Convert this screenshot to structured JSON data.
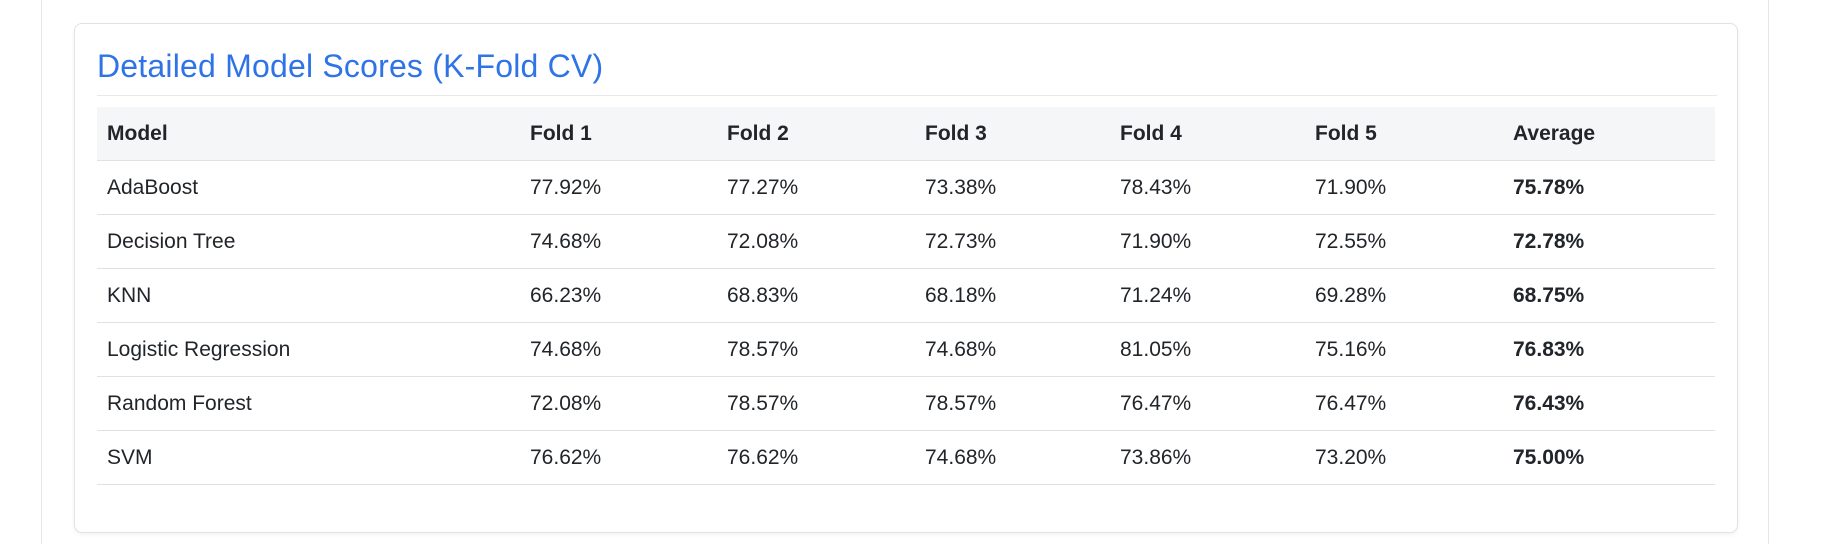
{
  "card": {
    "title": "Detailed Model Scores (K-Fold CV)"
  },
  "table": {
    "headers": [
      "Model",
      "Fold 1",
      "Fold 2",
      "Fold 3",
      "Fold 4",
      "Fold 5",
      "Average"
    ],
    "rows": [
      [
        "AdaBoost",
        "77.92%",
        "77.27%",
        "73.38%",
        "78.43%",
        "71.90%",
        "75.78%"
      ],
      [
        "Decision Tree",
        "74.68%",
        "72.08%",
        "72.73%",
        "71.90%",
        "72.55%",
        "72.78%"
      ],
      [
        "KNN",
        "66.23%",
        "68.83%",
        "68.18%",
        "71.24%",
        "69.28%",
        "68.75%"
      ],
      [
        "Logistic Regression",
        "74.68%",
        "78.57%",
        "74.68%",
        "81.05%",
        "75.16%",
        "76.83%"
      ],
      [
        "Random Forest",
        "72.08%",
        "78.57%",
        "78.57%",
        "76.47%",
        "76.47%",
        "76.43%"
      ],
      [
        "SVM",
        "76.62%",
        "76.62%",
        "74.68%",
        "73.86%",
        "73.20%",
        "75.00%"
      ]
    ]
  },
  "colors": {
    "title": "#2f74e6",
    "header_bg": "#f5f6f8",
    "row_border": "#dee2e6"
  }
}
